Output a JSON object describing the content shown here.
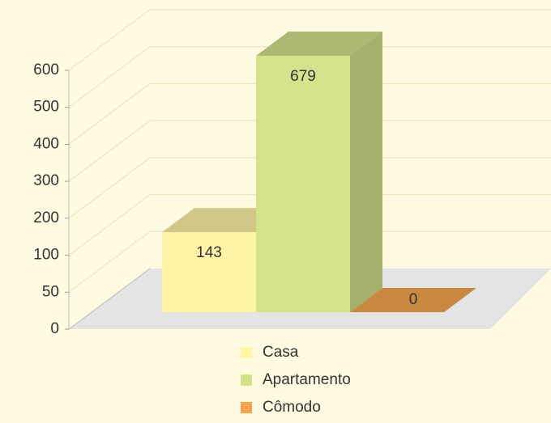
{
  "chart_data": {
    "type": "bar3d",
    "categories": [
      "Casa",
      "Apartamento",
      "Cômodo"
    ],
    "values": [
      143,
      679,
      0
    ],
    "colors": [
      "#fff3a6",
      "#d3e28b",
      "#f6a650"
    ],
    "ylim": [
      0,
      600
    ],
    "yticks": [
      0,
      50,
      100,
      200,
      300,
      400,
      500,
      600
    ],
    "grid": true,
    "legend": "bottom"
  }
}
